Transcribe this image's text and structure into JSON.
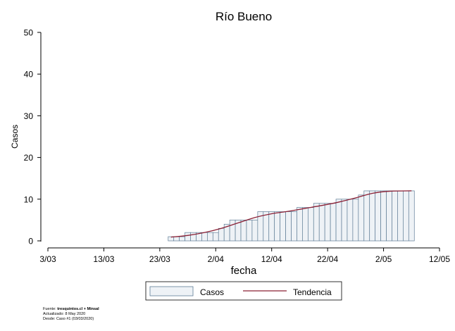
{
  "chart_data": {
    "type": "bar",
    "title": "Río Bueno",
    "xlabel": "fecha",
    "ylabel": "Casos",
    "ylim": [
      0,
      50
    ],
    "yticks": [
      0,
      10,
      20,
      30,
      40,
      50
    ],
    "xlim": [
      "2020-03-03",
      "2020-05-12"
    ],
    "xticks": [
      "3/03",
      "13/03",
      "23/03",
      "2/04",
      "12/04",
      "22/04",
      "2/05",
      "12/05"
    ],
    "grid": false,
    "legend_position": "bottom",
    "colors": {
      "bar_fill": "#eef2f6",
      "bar_edge": "#5f7d96",
      "trend": "#8b2035",
      "axis": "#000000"
    },
    "series": [
      {
        "name": "Casos",
        "kind": "bar",
        "x": [
          "2020-03-25",
          "2020-03-26",
          "2020-03-27",
          "2020-03-28",
          "2020-03-29",
          "2020-03-30",
          "2020-03-31",
          "2020-04-01",
          "2020-04-02",
          "2020-04-03",
          "2020-04-04",
          "2020-04-05",
          "2020-04-06",
          "2020-04-07",
          "2020-04-08",
          "2020-04-09",
          "2020-04-10",
          "2020-04-11",
          "2020-04-12",
          "2020-04-13",
          "2020-04-14",
          "2020-04-15",
          "2020-04-16",
          "2020-04-17",
          "2020-04-18",
          "2020-04-19",
          "2020-04-20",
          "2020-04-21",
          "2020-04-22",
          "2020-04-23",
          "2020-04-24",
          "2020-04-25",
          "2020-04-26",
          "2020-04-27",
          "2020-04-28",
          "2020-04-29",
          "2020-04-30",
          "2020-05-01",
          "2020-05-02",
          "2020-05-03",
          "2020-05-04",
          "2020-05-05",
          "2020-05-06",
          "2020-05-07"
        ],
        "values": [
          1,
          1,
          1,
          2,
          2,
          2,
          2,
          2,
          2,
          3,
          4,
          5,
          5,
          5,
          5,
          5,
          7,
          7,
          7,
          7,
          7,
          7,
          7,
          8,
          8,
          8,
          9,
          9,
          9,
          9,
          10,
          10,
          10,
          10,
          11,
          12,
          12,
          12,
          12,
          12,
          12,
          12,
          12,
          12
        ]
      },
      {
        "name": "Tendencia",
        "kind": "line",
        "x": [
          "2020-03-25",
          "2020-03-28",
          "2020-03-31",
          "2020-04-03",
          "2020-04-06",
          "2020-04-09",
          "2020-04-12",
          "2020-04-15",
          "2020-04-18",
          "2020-04-21",
          "2020-04-24",
          "2020-04-27",
          "2020-04-30",
          "2020-05-03",
          "2020-05-07"
        ],
        "values": [
          0.9,
          1.3,
          2.0,
          3.0,
          4.3,
          5.6,
          6.5,
          7.1,
          7.8,
          8.5,
          9.3,
          10.3,
          11.4,
          11.9,
          12.0
        ]
      }
    ]
  },
  "footer": {
    "source_prefix": "Fuente: ",
    "source_bold": "tresquintos.cl + Minsal",
    "updated": "Actualizado: 8 May 2020",
    "since": "Desde: Caso #1  (03/03/2020)"
  }
}
